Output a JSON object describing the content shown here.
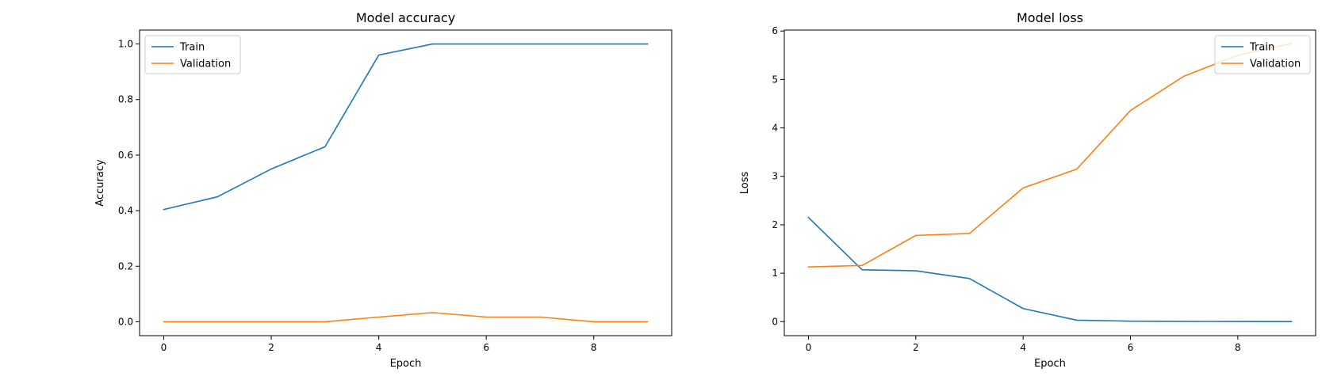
{
  "chart_data": [
    {
      "type": "line",
      "title": "Model accuracy",
      "xlabel": "Epoch",
      "ylabel": "Accuracy",
      "xlim": [
        -0.45,
        9.45
      ],
      "ylim": [
        -0.05,
        1.05
      ],
      "xticks": [
        0,
        2,
        4,
        6,
        8
      ],
      "yticks": [
        0.0,
        0.2,
        0.4,
        0.6,
        0.8,
        1.0
      ],
      "ytick_labels": [
        "0.0",
        "0.2",
        "0.4",
        "0.6",
        "0.8",
        "1.0"
      ],
      "legend_position": "upper-left",
      "x": [
        0,
        1,
        2,
        3,
        4,
        5,
        6,
        7,
        8,
        9
      ],
      "series": [
        {
          "name": "Train",
          "color": "#1f77b4",
          "values": [
            0.404,
            0.45,
            0.55,
            0.63,
            0.96,
            1.0,
            1.0,
            1.0,
            1.0,
            1.0
          ]
        },
        {
          "name": "Validation",
          "color": "#ff7f0e",
          "values": [
            0.0,
            0.0,
            0.0,
            0.0,
            0.017,
            0.033,
            0.017,
            0.017,
            0.0,
            0.0
          ]
        }
      ]
    },
    {
      "type": "line",
      "title": "Model loss",
      "xlabel": "Epoch",
      "ylabel": "Loss",
      "xlim": [
        -0.45,
        9.45
      ],
      "ylim": [
        -0.29,
        6.02
      ],
      "xticks": [
        0,
        2,
        4,
        6,
        8
      ],
      "yticks": [
        0,
        1,
        2,
        3,
        4,
        5,
        6
      ],
      "ytick_labels": [
        "0",
        "1",
        "2",
        "3",
        "4",
        "5",
        "6"
      ],
      "legend_position": "upper-right",
      "x": [
        0,
        1,
        2,
        3,
        4,
        5,
        6,
        7,
        8,
        9
      ],
      "series": [
        {
          "name": "Train",
          "color": "#1f77b4",
          "values": [
            2.15,
            1.07,
            1.05,
            0.89,
            0.27,
            0.03,
            0.01,
            0.005,
            0.003,
            0.002
          ]
        },
        {
          "name": "Validation",
          "color": "#ff7f0e",
          "values": [
            1.13,
            1.16,
            1.78,
            1.82,
            2.76,
            3.15,
            4.36,
            5.07,
            5.5,
            5.74
          ]
        }
      ]
    }
  ]
}
